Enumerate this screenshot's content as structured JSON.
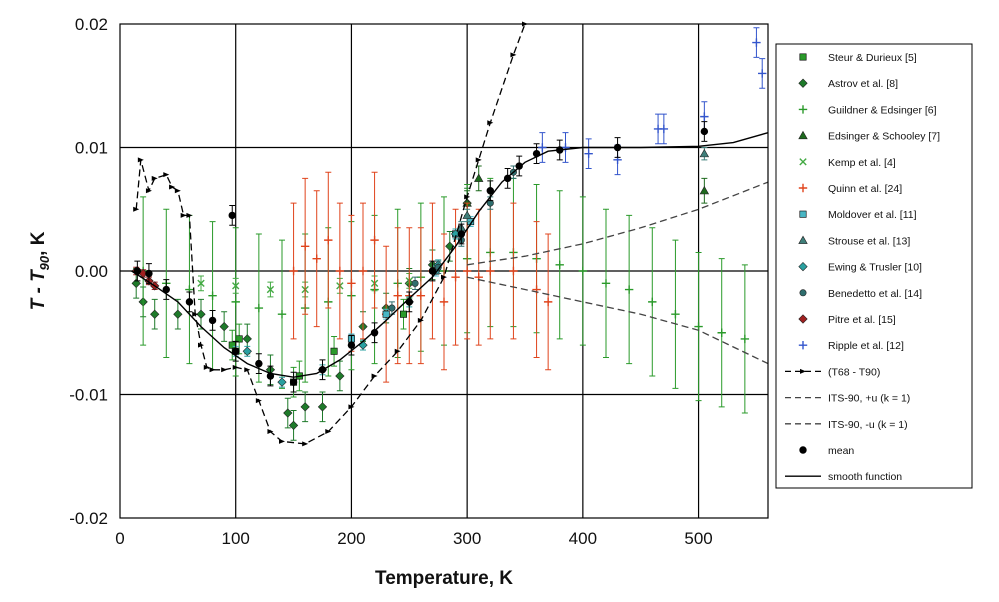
{
  "chart_data": {
    "type": "scatter",
    "title": "",
    "xlabel": "Temperature, K",
    "ylabel_main": "T - T",
    "ylabel_sub": "90",
    "ylabel_tail": ", K",
    "xlim": [
      0,
      560
    ],
    "ylim": [
      -0.02,
      0.02
    ],
    "x_ticks": [
      0,
      100,
      200,
      300,
      400,
      500
    ],
    "y_ticks": [
      {
        "value": 0.02,
        "label": "0.02"
      },
      {
        "value": 0.01,
        "label": "0.01"
      },
      {
        "value": 0.0,
        "label": "0.00"
      },
      {
        "value": -0.01,
        "label": "-0.01"
      },
      {
        "value": -0.02,
        "label": "-0.02"
      }
    ],
    "grid": "major, both axes",
    "legend_position": "right, outside plot",
    "series": [
      {
        "name": "Steur & Durieux [5]",
        "marker": "square",
        "color": "#2a9a2a",
        "points": [
          [
            97,
            -0.006
          ],
          [
            103,
            -0.0055
          ],
          [
            150,
            -0.009
          ],
          [
            155,
            -0.0085
          ],
          [
            185,
            -0.0065
          ],
          [
            245,
            -0.0035
          ]
        ],
        "err": 0.0012
      },
      {
        "name": "Astrov et al. [8]",
        "marker": "diamond",
        "color": "#1e7a2a",
        "points": [
          [
            14,
            -0.001
          ],
          [
            20,
            -0.0025
          ],
          [
            30,
            -0.0035
          ],
          [
            50,
            -0.0035
          ],
          [
            70,
            -0.0035
          ],
          [
            90,
            -0.0045
          ],
          [
            110,
            -0.0055
          ],
          [
            130,
            -0.008
          ],
          [
            145,
            -0.0115
          ],
          [
            150,
            -0.0125
          ],
          [
            160,
            -0.011
          ],
          [
            175,
            -0.011
          ],
          [
            190,
            -0.0085
          ],
          [
            210,
            -0.0045
          ],
          [
            230,
            -0.003
          ],
          [
            250,
            -0.001
          ],
          [
            270,
            0.0005
          ],
          [
            285,
            0.002
          ],
          [
            300,
            0.0055
          ]
        ],
        "err": 0.0012
      },
      {
        "name": "Guildner & Edsinger [6]",
        "marker": "plus",
        "color": "#2a9a2a",
        "points": [
          [
            20,
            0.0
          ],
          [
            40,
            -0.001
          ],
          [
            60,
            -0.0015
          ],
          [
            80,
            -0.002
          ],
          [
            100,
            -0.0025
          ],
          [
            120,
            -0.003
          ],
          [
            140,
            -0.0035
          ],
          [
            160,
            -0.003
          ],
          [
            180,
            -0.0025
          ],
          [
            200,
            -0.002
          ],
          [
            220,
            -0.0015
          ],
          [
            240,
            -0.001
          ],
          [
            260,
            -0.0005
          ],
          [
            280,
            0.0
          ],
          [
            300,
            0.001
          ],
          [
            320,
            0.0015
          ],
          [
            340,
            0.0015
          ],
          [
            360,
            0.001
          ],
          [
            380,
            0.0005
          ],
          [
            400,
            0.0
          ],
          [
            420,
            -0.001
          ],
          [
            440,
            -0.0015
          ],
          [
            460,
            -0.0025
          ],
          [
            480,
            -0.0035
          ],
          [
            500,
            -0.0045
          ],
          [
            520,
            -0.005
          ],
          [
            540,
            -0.0055
          ]
        ],
        "err": 0.006
      },
      {
        "name": "Edsinger & Schooley [7]",
        "marker": "triangle",
        "color": "#1e6a1e",
        "points": [
          [
            300,
            0.0055
          ],
          [
            310,
            0.0075
          ],
          [
            505,
            0.0065
          ]
        ],
        "err": 0.001
      },
      {
        "name": "Kemp et al. [4]",
        "marker": "x",
        "color": "#44aa44",
        "points": [
          [
            70,
            -0.001
          ],
          [
            100,
            -0.0012
          ],
          [
            130,
            -0.0015
          ],
          [
            160,
            -0.0015
          ],
          [
            190,
            -0.0012
          ],
          [
            220,
            -0.001
          ],
          [
            250,
            -0.0008
          ]
        ],
        "err": 0.0006
      },
      {
        "name": "Quinn et al. [24]",
        "marker": "plus",
        "color": "#e0441c",
        "points": [
          [
            150,
            0.0
          ],
          [
            160,
            0.002
          ],
          [
            170,
            0.001
          ],
          [
            180,
            0.0025
          ],
          [
            190,
            0.0
          ],
          [
            200,
            -0.001
          ],
          [
            210,
            0.0
          ],
          [
            220,
            0.0025
          ],
          [
            230,
            -0.0035
          ],
          [
            240,
            -0.002
          ],
          [
            250,
            -0.002
          ],
          [
            260,
            -0.002
          ],
          [
            270,
            0.0
          ],
          [
            280,
            -0.0025
          ],
          [
            290,
            -0.0005
          ],
          [
            300,
            0.0
          ],
          [
            310,
            -0.0005
          ],
          [
            320,
            0.0
          ],
          [
            340,
            0.0
          ],
          [
            360,
            -0.0015
          ],
          [
            370,
            -0.0025
          ]
        ],
        "err": 0.0055
      },
      {
        "name": "Moldover et al. [11]",
        "marker": "square",
        "color": "#49b6c4",
        "points": [
          [
            100,
            -0.0065
          ],
          [
            200,
            -0.0055
          ],
          [
            230,
            -0.0035
          ],
          [
            273,
            0.0
          ],
          [
            290,
            0.003
          ],
          [
            303,
            0.004
          ]
        ],
        "err": 0.0004
      },
      {
        "name": "Strouse et al. [13]",
        "marker": "triangle",
        "color": "#3f7f7a",
        "points": [
          [
            295,
            0.0035
          ],
          [
            300,
            0.0045
          ],
          [
            505,
            0.0095
          ]
        ],
        "err": 0.0005
      },
      {
        "name": "Ewing & Trusler [10]",
        "marker": "diamond",
        "color": "#2aa0a0",
        "points": [
          [
            110,
            -0.0065
          ],
          [
            140,
            -0.009
          ],
          [
            175,
            -0.008
          ],
          [
            210,
            -0.006
          ],
          [
            250,
            -0.0025
          ],
          [
            275,
            0.0005
          ],
          [
            290,
            0.003
          ]
        ],
        "err": 0.0004
      },
      {
        "name": "Benedetto et al. [14]",
        "marker": "circle",
        "color": "#2f6e6e",
        "points": [
          [
            235,
            -0.003
          ],
          [
            255,
            -0.001
          ],
          [
            275,
            0.0003
          ],
          [
            295,
            0.0025
          ],
          [
            320,
            0.0055
          ],
          [
            340,
            0.008
          ]
        ],
        "err": 0.0005
      },
      {
        "name": "Pitre et al. [15]",
        "marker": "diamond",
        "color": "#a02020",
        "points": [
          [
            14,
            0.0
          ],
          [
            20,
            -0.0002
          ],
          [
            25,
            -0.0008
          ],
          [
            30,
            -0.0012
          ]
        ],
        "err": 0.0003
      },
      {
        "name": "Ripple et al. [12]",
        "marker": "plus",
        "color": "#3355cc",
        "points": [
          [
            365,
            0.01
          ],
          [
            385,
            0.01
          ],
          [
            405,
            0.0095
          ],
          [
            430,
            0.009
          ],
          [
            465,
            0.0115
          ],
          [
            470,
            0.0115
          ],
          [
            505,
            0.0125
          ],
          [
            550,
            0.0185
          ],
          [
            555,
            0.016
          ]
        ],
        "err": 0.0012
      },
      {
        "name": "(T68 - T90)",
        "line": "dashed-arrow",
        "color": "#000000",
        "points": [
          [
            14,
            0.005
          ],
          [
            18,
            0.009
          ],
          [
            25,
            0.0065
          ],
          [
            30,
            0.0075
          ],
          [
            40,
            0.0078
          ],
          [
            45,
            0.0068
          ],
          [
            50,
            0.0065
          ],
          [
            55,
            0.0045
          ],
          [
            60,
            0.0045
          ],
          [
            65,
            -0.0035
          ],
          [
            70,
            -0.006
          ],
          [
            75,
            -0.0078
          ],
          [
            80,
            -0.008
          ],
          [
            90,
            -0.008
          ],
          [
            100,
            -0.0078
          ],
          [
            110,
            -0.008
          ],
          [
            120,
            -0.0105
          ],
          [
            130,
            -0.013
          ],
          [
            140,
            -0.0138
          ],
          [
            160,
            -0.014
          ],
          [
            180,
            -0.013
          ],
          [
            200,
            -0.011
          ],
          [
            220,
            -0.0085
          ],
          [
            240,
            -0.0065
          ],
          [
            260,
            -0.004
          ],
          [
            280,
            -0.0005
          ],
          [
            300,
            0.006
          ],
          [
            310,
            0.009
          ],
          [
            320,
            0.012
          ],
          [
            340,
            0.0175
          ],
          [
            350,
            0.02
          ]
        ]
      },
      {
        "name": "ITS-90, +u (k = 1)",
        "line": "dashed",
        "color": "#444444",
        "points": [
          [
            300,
            0.0005
          ],
          [
            350,
            0.0012
          ],
          [
            400,
            0.0022
          ],
          [
            450,
            0.0035
          ],
          [
            500,
            0.005
          ],
          [
            560,
            0.0072
          ]
        ]
      },
      {
        "name": "ITS-90, -u (k = 1)",
        "line": "dashed",
        "color": "#444444",
        "points": [
          [
            300,
            -0.0005
          ],
          [
            350,
            -0.0015
          ],
          [
            400,
            -0.0025
          ],
          [
            450,
            -0.0035
          ],
          [
            500,
            -0.0048
          ],
          [
            560,
            -0.0075
          ]
        ]
      },
      {
        "name": "mean",
        "marker": "filled-circle",
        "color": "#000000",
        "points": [
          [
            15,
            0.0
          ],
          [
            25,
            -0.0002
          ],
          [
            40,
            -0.0015
          ],
          [
            60,
            -0.0025
          ],
          [
            80,
            -0.004
          ],
          [
            97,
            0.0045
          ],
          [
            100,
            -0.0065
          ],
          [
            120,
            -0.0075
          ],
          [
            130,
            -0.0085
          ],
          [
            150,
            -0.009
          ],
          [
            175,
            -0.008
          ],
          [
            200,
            -0.006
          ],
          [
            220,
            -0.005
          ],
          [
            250,
            -0.0025
          ],
          [
            270,
            0.0
          ],
          [
            295,
            0.003
          ],
          [
            320,
            0.0065
          ],
          [
            335,
            0.0075
          ],
          [
            345,
            0.0085
          ],
          [
            360,
            0.0095
          ],
          [
            380,
            0.0098
          ],
          [
            430,
            0.01
          ],
          [
            505,
            0.0113
          ]
        ],
        "err": 0.0008
      },
      {
        "name": "smooth function",
        "line": "solid",
        "color": "#000000",
        "points": [
          [
            10,
            0.0
          ],
          [
            30,
            -0.0012
          ],
          [
            50,
            -0.0025
          ],
          [
            70,
            -0.0045
          ],
          [
            90,
            -0.0062
          ],
          [
            110,
            -0.0075
          ],
          [
            130,
            -0.0083
          ],
          [
            150,
            -0.0086
          ],
          [
            170,
            -0.0083
          ],
          [
            190,
            -0.0072
          ],
          [
            210,
            -0.0057
          ],
          [
            230,
            -0.004
          ],
          [
            250,
            -0.0022
          ],
          [
            270,
            -0.0005
          ],
          [
            290,
            0.002
          ],
          [
            310,
            0.0048
          ],
          [
            330,
            0.0072
          ],
          [
            350,
            0.0088
          ],
          [
            370,
            0.0097
          ],
          [
            400,
            0.01
          ],
          [
            450,
            0.01
          ],
          [
            500,
            0.0101
          ],
          [
            530,
            0.0104
          ],
          [
            560,
            0.0112
          ]
        ]
      }
    ]
  }
}
